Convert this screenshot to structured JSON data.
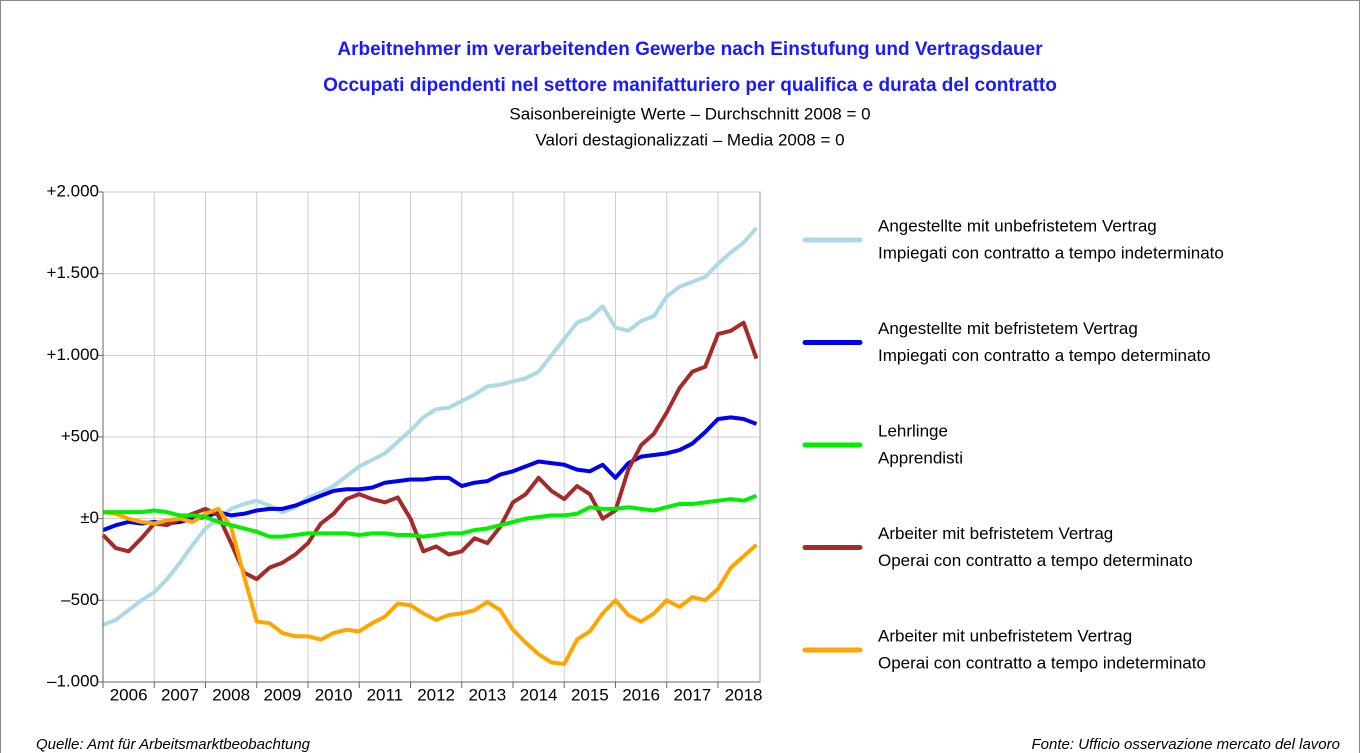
{
  "chart_data": {
    "type": "line",
    "title": [
      "Arbeitnehmer im verarbeitenden Gewerbe nach Einstufung und Vertragsdauer",
      "Occupati dipendenti nel settore manifatturiero per qualifica e durata del contratto"
    ],
    "subtitle": [
      "Saisonbereinigte Werte – Durchschnitt 2008 = 0",
      "Valori destagionalizzati – Media 2008 = 0"
    ],
    "source": [
      "Quelle: Amt für Arbeitsmarktbeobachtung",
      "Fonte: Ufficio osservazione mercato del lavoro"
    ],
    "x": [
      2006,
      2006.25,
      2006.5,
      2006.75,
      2007,
      2007.25,
      2007.5,
      2007.75,
      2008,
      2008.25,
      2008.5,
      2008.75,
      2009,
      2009.25,
      2009.5,
      2009.75,
      2010,
      2010.25,
      2010.5,
      2010.75,
      2011,
      2011.25,
      2011.5,
      2011.75,
      2012,
      2012.25,
      2012.5,
      2012.75,
      2013,
      2013.25,
      2013.5,
      2013.75,
      2014,
      2014.25,
      2014.5,
      2014.75,
      2015,
      2015.25,
      2015.5,
      2015.75,
      2016,
      2016.25,
      2016.5,
      2016.75,
      2017,
      2017.25,
      2017.5,
      2017.75,
      2018,
      2018.25,
      2018.5,
      2018.75
    ],
    "xlim": [
      2006,
      2018.82
    ],
    "xticks": [
      2006,
      2007,
      2008,
      2009,
      2010,
      2011,
      2012,
      2013,
      2014,
      2015,
      2016,
      2017,
      2018
    ],
    "ylim": [
      -1000,
      2000
    ],
    "yticks": [
      {
        "value": -1000,
        "label": "–1.000"
      },
      {
        "value": -500,
        "label": "–500"
      },
      {
        "value": 0,
        "label": "±0"
      },
      {
        "value": 500,
        "label": "+500"
      },
      {
        "value": 1000,
        "label": "+1.000"
      },
      {
        "value": 1500,
        "label": "+1.500"
      },
      {
        "value": 2000,
        "label": "+2.000"
      }
    ],
    "negative_tick_color": "#e00000",
    "grid": true,
    "legend": "right",
    "series": [
      {
        "name": [
          "Angestellte mit unbefristetem Vertrag",
          "Impiegati con contratto a tempo indeterminato"
        ],
        "color": "#add8e6",
        "values": [
          -650,
          -620,
          -560,
          -500,
          -450,
          -370,
          -270,
          -160,
          -60,
          0,
          60,
          90,
          110,
          80,
          40,
          70,
          130,
          160,
          200,
          260,
          320,
          360,
          400,
          470,
          540,
          620,
          670,
          680,
          720,
          760,
          810,
          820,
          840,
          860,
          900,
          1000,
          1100,
          1200,
          1230,
          1300,
          1170,
          1150,
          1210,
          1240,
          1360,
          1420,
          1450,
          1480,
          1560,
          1630,
          1690,
          1780
        ]
      },
      {
        "name": [
          "Angestellte mit befristetem Vertrag",
          "Impiegati con contratto a tempo determinato"
        ],
        "color": "#0000ee",
        "values": [
          -70,
          -40,
          -20,
          -30,
          -20,
          -30,
          -20,
          0,
          10,
          40,
          20,
          30,
          50,
          60,
          60,
          80,
          110,
          140,
          170,
          180,
          180,
          190,
          220,
          230,
          240,
          240,
          250,
          250,
          200,
          220,
          230,
          270,
          290,
          320,
          350,
          340,
          330,
          300,
          290,
          330,
          250,
          340,
          380,
          390,
          400,
          420,
          460,
          530,
          610,
          620,
          610,
          580
        ]
      },
      {
        "name": [
          "Lehrlinge",
          "Apprendisti"
        ],
        "color": "#00ee00",
        "values": [
          40,
          40,
          40,
          40,
          50,
          40,
          20,
          20,
          10,
          -20,
          -40,
          -60,
          -80,
          -110,
          -110,
          -100,
          -90,
          -90,
          -90,
          -90,
          -100,
          -90,
          -90,
          -100,
          -100,
          -110,
          -100,
          -90,
          -90,
          -70,
          -60,
          -40,
          -20,
          0,
          10,
          20,
          20,
          30,
          70,
          60,
          60,
          70,
          60,
          50,
          70,
          90,
          90,
          100,
          110,
          120,
          110,
          140
        ]
      },
      {
        "name": [
          "Arbeiter mit befristetem Vertrag",
          "Operai con contratto a tempo determinato"
        ],
        "color": "#a52a2a",
        "values": [
          -100,
          -180,
          -200,
          -120,
          -30,
          -40,
          0,
          30,
          60,
          20,
          -150,
          -330,
          -370,
          -300,
          -270,
          -220,
          -150,
          -30,
          30,
          120,
          150,
          120,
          100,
          130,
          0,
          -200,
          -170,
          -220,
          -200,
          -120,
          -150,
          -50,
          100,
          150,
          250,
          170,
          120,
          200,
          150,
          0,
          50,
          300,
          450,
          520,
          650,
          800,
          900,
          930,
          1130,
          1150,
          1200,
          980
        ]
      },
      {
        "name": [
          "Arbeiter mit unbefristetem Vertrag",
          "Operai con contratto a tempo indeterminato"
        ],
        "color": "#ffa500",
        "values": [
          40,
          30,
          0,
          -20,
          -30,
          -10,
          0,
          -20,
          30,
          60,
          -50,
          -350,
          -630,
          -640,
          -700,
          -720,
          -720,
          -740,
          -700,
          -680,
          -690,
          -640,
          -600,
          -520,
          -530,
          -580,
          -620,
          -590,
          -580,
          -560,
          -510,
          -560,
          -680,
          -760,
          -830,
          -880,
          -890,
          -740,
          -690,
          -580,
          -500,
          -590,
          -630,
          -580,
          -500,
          -540,
          -480,
          -500,
          -430,
          -300,
          -230,
          -160
        ]
      }
    ]
  }
}
